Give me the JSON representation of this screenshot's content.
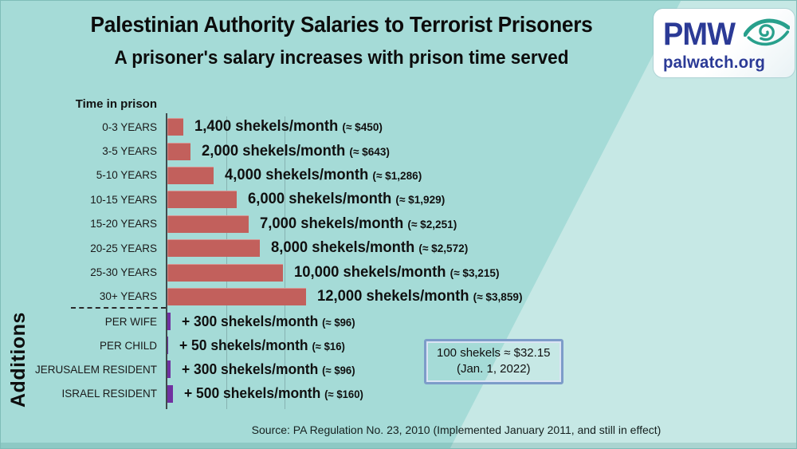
{
  "header": {
    "title": "Palestinian Authority Salaries to Terrorist Prisoners",
    "subtitle": "A prisoner's salary increases with prison time served"
  },
  "logo": {
    "acronym": "PMW",
    "domain": "palwatch.org",
    "icon": "eye-swirl-icon",
    "brand_color": "#2b3a96",
    "eye_color": "#28a08c"
  },
  "chart_data": {
    "type": "bar",
    "orientation": "horizontal",
    "group_label": "Time in prison",
    "additions_group_label": "Additions",
    "unit": "shekels/month",
    "xlim": [
      0,
      12000
    ],
    "gridlines_shekels": [
      5000,
      10000
    ],
    "grid": "vertical-faint",
    "bar_color": "#c2605c",
    "addition_bar_color": "#7030a0",
    "categories": [
      "0-3 YEARS",
      "3-5 YEARS",
      "5-10 YEARS",
      "10-15 YEARS",
      "15-20 YEARS",
      "20-25 YEARS",
      "25-30 YEARS",
      "30+ YEARS"
    ],
    "values": [
      1400,
      2000,
      4000,
      6000,
      7000,
      8000,
      10000,
      12000
    ],
    "rows": [
      {
        "label": "0-3 YEARS",
        "shekels": 1400,
        "value": "1,400 shekels/month",
        "usd": "(≈ $450)"
      },
      {
        "label": "3-5 YEARS",
        "shekels": 2000,
        "value": "2,000 shekels/month",
        "usd": "(≈ $643)"
      },
      {
        "label": "5-10 YEARS",
        "shekels": 4000,
        "value": "4,000 shekels/month",
        "usd": "(≈ $1,286)"
      },
      {
        "label": "10-15 YEARS",
        "shekels": 6000,
        "value": "6,000 shekels/month",
        "usd": "(≈ $1,929)"
      },
      {
        "label": "15-20 YEARS",
        "shekels": 7000,
        "value": "7,000 shekels/month",
        "usd": "(≈ $2,251)"
      },
      {
        "label": "20-25 YEARS",
        "shekels": 8000,
        "value": "8,000 shekels/month",
        "usd": "(≈ $2,572)"
      },
      {
        "label": "25-30 YEARS",
        "shekels": 10000,
        "value": "10,000 shekels/month",
        "usd": "(≈ $3,215)"
      },
      {
        "label": "30+ YEARS",
        "shekels": 12000,
        "value": "12,000 shekels/month",
        "usd": "(≈ $3,859)"
      }
    ],
    "additions": [
      {
        "label": "PER WIFE",
        "shekels": 300,
        "value": "+ 300 shekels/month",
        "usd": "(≈ $96)"
      },
      {
        "label": "PER CHILD",
        "shekels": 50,
        "value": "+ 50 shekels/month",
        "usd": "(≈ $16)"
      },
      {
        "label": "JERUSALEM RESIDENT",
        "shekels": 300,
        "value": "+ 300 shekels/month",
        "usd": "(≈ $96)"
      },
      {
        "label": "ISRAEL RESIDENT",
        "shekels": 500,
        "value": "+ 500 shekels/month",
        "usd": "(≈ $160)"
      }
    ],
    "note_box": {
      "line1": "100 shekels ≈ $32.15",
      "line2": "(Jan. 1, 2022)"
    },
    "source": "Source: PA Regulation No. 23, 2010 (Implemented January 2011, and still in effect)"
  }
}
